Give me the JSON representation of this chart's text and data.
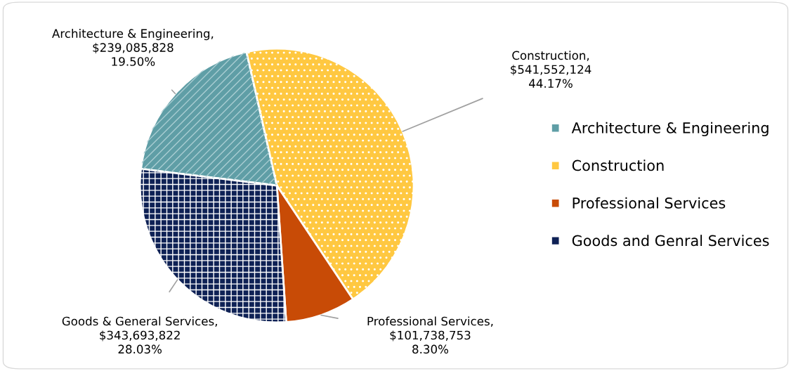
{
  "chart_data": {
    "type": "pie",
    "categories": [
      "Architecture & Engineering",
      "Construction",
      "Professional Services",
      "Goods and Genral Services"
    ],
    "values": [
      239085828,
      541552124,
      101738753,
      343693822
    ],
    "colors": [
      "#5f9ea6",
      "#ffc841",
      "#c84b06",
      "#0e2155"
    ],
    "value_labels": [
      "Architecture & Engineering,\n$239,085,828\n19.50%",
      "Construction,\n$541,552,124\n44.17%",
      "Professional Services,\n$101,738,753\n8.30%",
      "Goods & General Services,\n$343,693,822\n28.03%"
    ],
    "legend": "right"
  }
}
